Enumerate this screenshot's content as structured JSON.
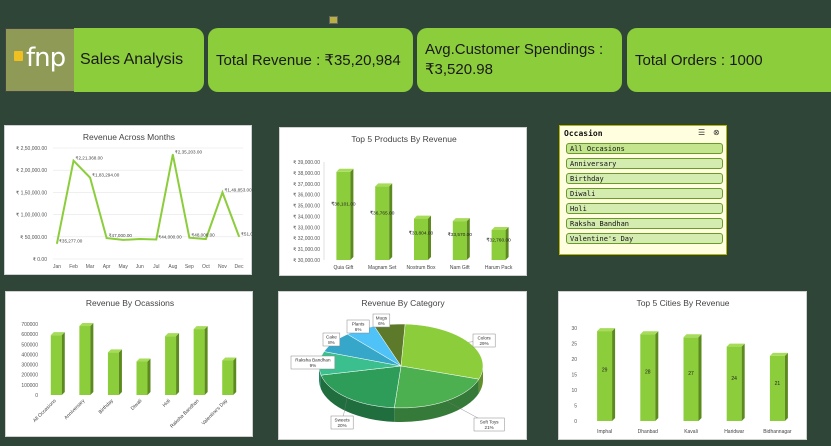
{
  "header": {
    "logo_text": "fnp",
    "title": "Sales Analysis",
    "kpis": [
      {
        "label": "Total Revenue : ₹35,20,984"
      },
      {
        "label": "Avg.Customer Spendings : ₹3,520.98"
      },
      {
        "label": "Total Orders : 1000"
      }
    ]
  },
  "slicer": {
    "title": "Occasion",
    "items": [
      "All Occasions",
      "Anniversary",
      "Birthday",
      "Diwali",
      "Holi",
      "Raksha Bandhan",
      "Valentine's Day"
    ]
  },
  "colors": {
    "bar": "#8ccd3b",
    "bar_dark": "#5c8a1e",
    "bg": "#2f4537",
    "kpi": "#8ccd3b"
  },
  "chart_data": [
    {
      "id": "months",
      "type": "line",
      "title": "Revenue Across Months",
      "categories": [
        "Jan",
        "Feb",
        "Mar",
        "Apr",
        "May",
        "Jun",
        "Jul",
        "Aug",
        "Sep",
        "Oct",
        "Nov",
        "Dec"
      ],
      "values": [
        35277,
        221368,
        183294,
        47000,
        43000,
        45000,
        44000,
        235203,
        48000,
        45000,
        149853,
        51000
      ],
      "data_labels": [
        "₹35,277.00",
        "₹2,21,368.00",
        "₹1,83,294.00",
        "₹47,000.00",
        "",
        "",
        "₹44,000.00",
        "₹2,35,203.00",
        "₹48,000.00",
        "",
        "₹1,49,853.00",
        "₹51,000.00"
      ],
      "y_ticks": [
        "₹ 0.00",
        "₹ 50,000.00",
        "₹ 1,00,000.00",
        "₹ 1,50,000.00",
        "₹ 2,00,000.00",
        "₹ 2,50,000.00"
      ],
      "ylim": [
        0,
        250000
      ]
    },
    {
      "id": "products",
      "type": "bar",
      "title": "Top 5 Products By Revenue",
      "categories": [
        "Quia Gift",
        "Magnam Set",
        "Nostrum Box",
        "Nam Gift",
        "Harum Pack"
      ],
      "values": [
        38101,
        36765,
        33804,
        33570,
        32760
      ],
      "data_labels": [
        "₹38,101.00",
        "₹36,765.00",
        "₹33,804.00",
        "₹33,570.00",
        "₹32,760.00"
      ],
      "y_ticks": [
        "₹ 30,000.00",
        "₹ 31,000.00",
        "₹ 32,000.00",
        "₹ 33,000.00",
        "₹ 34,000.00",
        "₹ 35,000.00",
        "₹ 36,000.00",
        "₹ 37,000.00",
        "₹ 38,000.00",
        "₹ 39,000.00"
      ],
      "ylim": [
        30000,
        39000
      ]
    },
    {
      "id": "occasions",
      "type": "bar",
      "title": "Revenue By Ocassions",
      "categories": [
        "All Occasions",
        "Anniversary",
        "Birthday",
        "Diwali",
        "Holi",
        "Raksha Bandhan",
        "Valentine's Day"
      ],
      "values": [
        590000,
        680000,
        420000,
        330000,
        580000,
        650000,
        340000
      ],
      "y_ticks": [
        "0",
        "100000",
        "200000",
        "300000",
        "400000",
        "500000",
        "600000",
        "700000"
      ],
      "ylim": [
        0,
        700000
      ]
    },
    {
      "id": "category",
      "type": "pie",
      "title": "Revenue By Category",
      "slices": [
        {
          "name": "Colors",
          "value": 29,
          "label": "29%",
          "color": "#8ccd3b"
        },
        {
          "name": "Soft Toys",
          "value": 21,
          "label": "21%",
          "color": "#4caf50"
        },
        {
          "name": "Sweets",
          "value": 20,
          "label": "20%",
          "color": "#2e9d5a"
        },
        {
          "name": "Raksha Bandhan",
          "value": 9,
          "label": "9%",
          "color": "#3bbf8f"
        },
        {
          "name": "Cake",
          "value": 8,
          "label": "8%",
          "color": "#36a7c9"
        },
        {
          "name": "Plants",
          "value": 6,
          "label": "6%",
          "color": "#4fc3f7"
        },
        {
          "name": "Mugs",
          "value": 6,
          "label": "6%",
          "color": "#5d7a2a"
        }
      ]
    },
    {
      "id": "cities",
      "type": "bar",
      "title": "Top 5 Cities By Revenue",
      "categories": [
        "Imphal",
        "Dhanbad",
        "Kavali",
        "Haridwar",
        "Bidhannagar"
      ],
      "values": [
        29,
        28,
        27,
        24,
        21
      ],
      "data_labels": [
        "29",
        "28",
        "27",
        "24",
        "21"
      ],
      "y_ticks": [
        "0",
        "5",
        "10",
        "15",
        "20",
        "25",
        "30"
      ],
      "ylim": [
        0,
        30
      ]
    }
  ]
}
